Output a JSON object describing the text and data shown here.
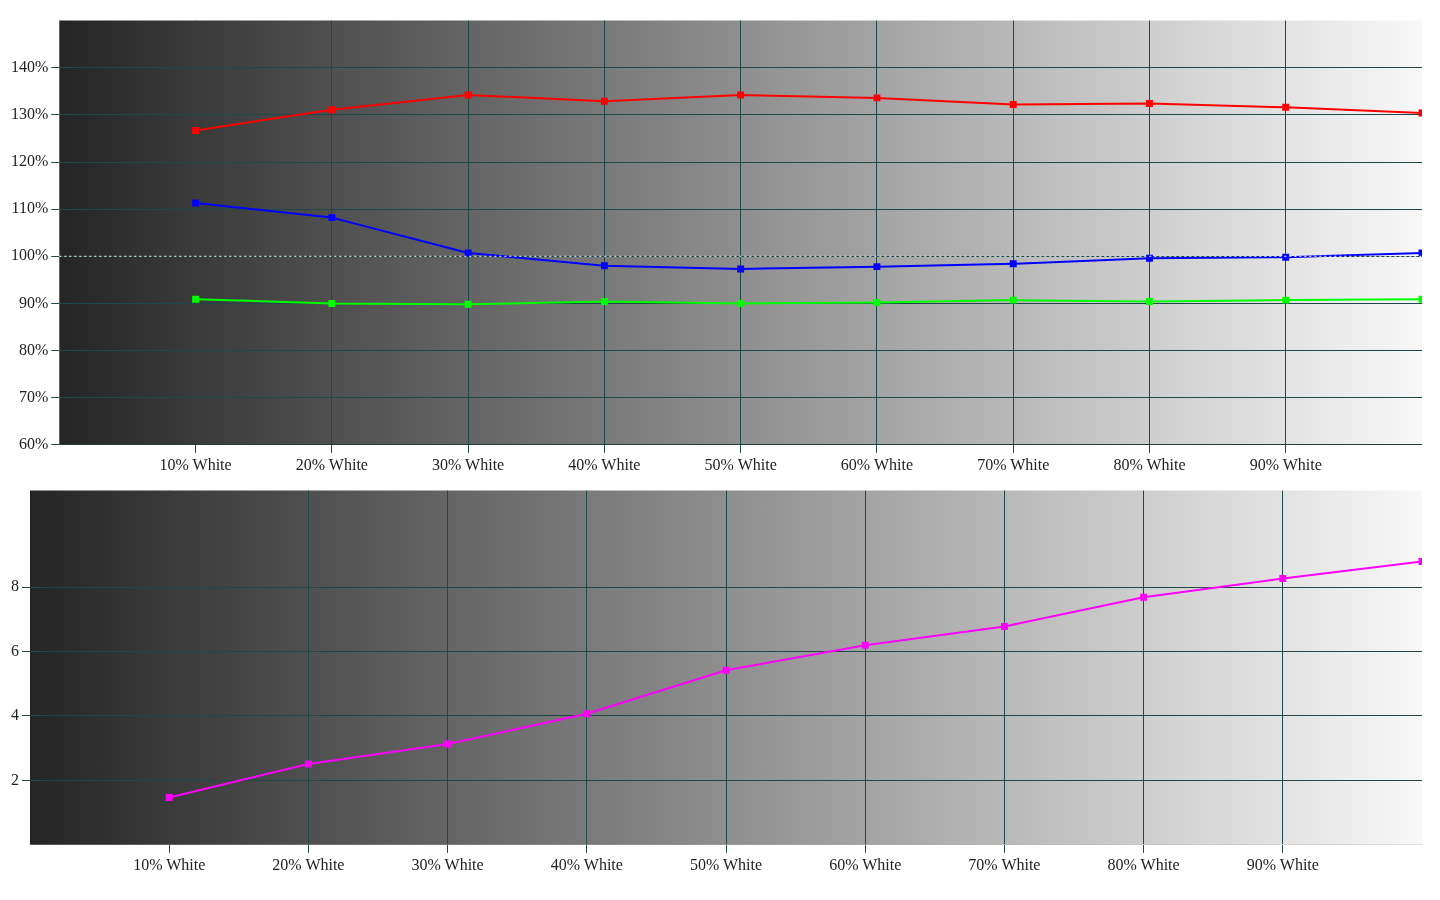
{
  "chart_data": [
    {
      "type": "line",
      "x": [
        10,
        20,
        30,
        40,
        50,
        60,
        70,
        80,
        90,
        100
      ],
      "xlim": [
        0,
        100
      ],
      "xticks": [
        {
          "value": 10,
          "label": "10% White"
        },
        {
          "value": 20,
          "label": "20% White"
        },
        {
          "value": 30,
          "label": "30% White"
        },
        {
          "value": 40,
          "label": "40% White"
        },
        {
          "value": 50,
          "label": "50% White"
        },
        {
          "value": 60,
          "label": "60% White"
        },
        {
          "value": 70,
          "label": "70% White"
        },
        {
          "value": 80,
          "label": "80% White"
        },
        {
          "value": 90,
          "label": "90% White"
        }
      ],
      "ylim": [
        60,
        150
      ],
      "yticks": [
        {
          "value": 60,
          "label": "60%"
        },
        {
          "value": 70,
          "label": "70%"
        },
        {
          "value": 80,
          "label": "80%"
        },
        {
          "value": 90,
          "label": "90%"
        },
        {
          "value": 100,
          "label": "100%"
        },
        {
          "value": 110,
          "label": "110%"
        },
        {
          "value": 120,
          "label": "120%"
        },
        {
          "value": 130,
          "label": "130%"
        },
        {
          "value": 140,
          "label": "140%"
        }
      ],
      "series": [
        {
          "color": "#ff0000",
          "values": [
            126.7,
            131.1,
            134.2,
            132.9,
            134.2,
            133.6,
            132.2,
            132.4,
            131.6,
            130.4
          ]
        },
        {
          "color": "#0000ff",
          "values": [
            111.3,
            108.2,
            100.7,
            98,
            97.3,
            97.8,
            98.4,
            99.6,
            99.8,
            100.7
          ]
        },
        {
          "color": "#00ff00",
          "values": [
            90.9,
            90,
            89.8,
            90.4,
            90,
            90.2,
            90.7,
            90.4,
            90.7,
            90.9
          ]
        }
      ],
      "ref_lines": [
        {
          "axis": "y",
          "value": 100,
          "color": "#ffffff",
          "line_style": "dotted"
        }
      ],
      "grid": true,
      "marker": "square",
      "legend": false
    },
    {
      "type": "line",
      "x": [
        10,
        20,
        30,
        40,
        50,
        60,
        70,
        80,
        90,
        100
      ],
      "xlim": [
        0,
        100
      ],
      "xticks": [
        {
          "value": 10,
          "label": "10% White"
        },
        {
          "value": 20,
          "label": "20% White"
        },
        {
          "value": 30,
          "label": "30% White"
        },
        {
          "value": 40,
          "label": "40% White"
        },
        {
          "value": 50,
          "label": "50% White"
        },
        {
          "value": 60,
          "label": "60% White"
        },
        {
          "value": 70,
          "label": "70% White"
        },
        {
          "value": 80,
          "label": "80% White"
        },
        {
          "value": 90,
          "label": "90% White"
        }
      ],
      "ylim": [
        0,
        11
      ],
      "yticks": [
        2,
        4,
        6,
        8
      ],
      "series": [
        {
          "color": "#ff00ff",
          "values": [
            1.47,
            2.51,
            3.13,
            4.07,
            5.42,
            6.2,
            6.78,
            7.69,
            8.27,
            8.8
          ]
        }
      ],
      "grid": true,
      "marker": "square",
      "legend": false
    }
  ]
}
